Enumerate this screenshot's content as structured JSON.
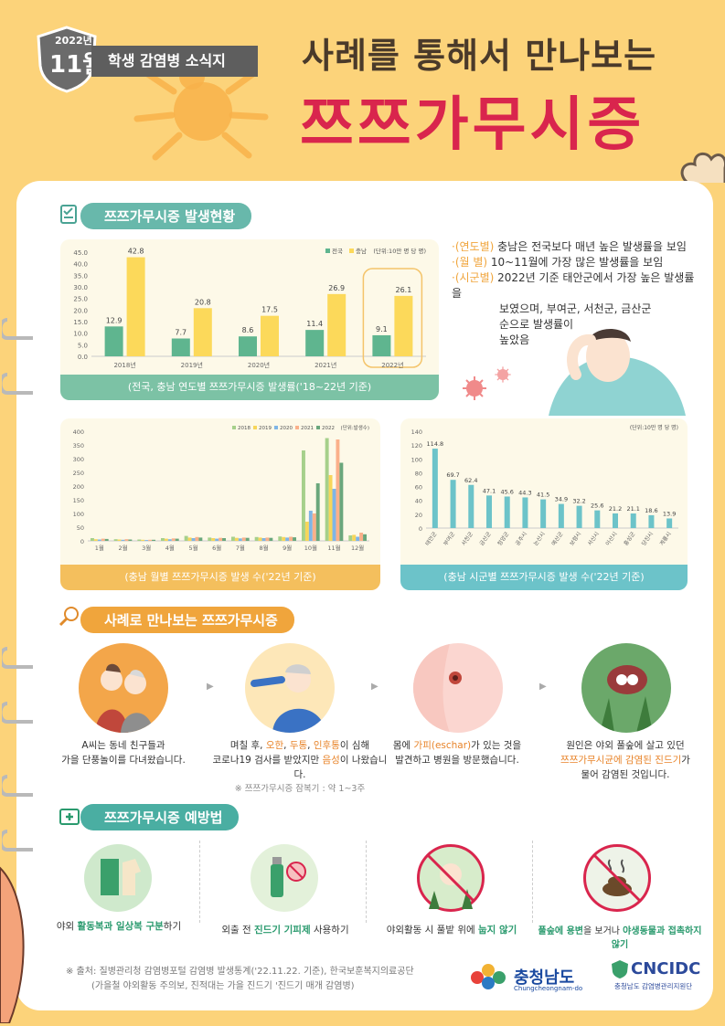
{
  "header": {
    "year": "2022년",
    "month": "11월",
    "newsletter": "학생 감염병 소식지",
    "title_line1": "사례를 통해서 만나보는",
    "title_line2": "쯔쯔가무시증"
  },
  "section1": {
    "heading": "쯔쯔가무시증 발생현황",
    "notes": [
      {
        "key": "·(연도별)",
        "text": "충남은 전국보다 매년 높은 발생률을 보임"
      },
      {
        "key": "·(월   별)",
        "text": "10~11월에 가장 많은 발생률을 보임"
      },
      {
        "key": "·(시군별)",
        "text": "2022년 기준 태안군에서 가장 높은 발생률을"
      }
    ],
    "notes_cont": [
      "보였으며, 부여군, 서천군, 금산군",
      "순으로 발생률이",
      "높았음"
    ]
  },
  "chart_yearly": {
    "type": "bar",
    "caption": "(전국, 충남 연도별 쯔쯔가무시증 발생률('18~22년 기준)",
    "unit": "(단위:10만 명 당 명)",
    "categories": [
      "2018년",
      "2019년",
      "2020년",
      "2021년",
      "2022년"
    ],
    "series": [
      {
        "name": "전국",
        "color": "#5fb58f",
        "values": [
          12.9,
          7.7,
          8.6,
          11.4,
          9.1
        ]
      },
      {
        "name": "충남",
        "color": "#fcd95a",
        "values": [
          42.8,
          20.8,
          17.5,
          26.9,
          26.1
        ]
      }
    ],
    "yticks": [
      "0.0",
      "5.0",
      "10.0",
      "15.0",
      "20.0",
      "25.0",
      "30.0",
      "35.0",
      "40.0",
      "45.0"
    ],
    "ylim": [
      0,
      45
    ]
  },
  "chart_monthly": {
    "type": "bar",
    "caption": "(충남 월별 쯔쯔가무시증 발생 수('22년 기준)",
    "unit": "(단위:발생수)",
    "categories": [
      "1월",
      "2월",
      "3월",
      "4월",
      "5월",
      "6월",
      "7월",
      "8월",
      "9월",
      "10월",
      "11월",
      "12월"
    ],
    "series": [
      {
        "name": "2018",
        "color": "#a6d08b",
        "values": [
          10,
          6,
          5,
          10,
          18,
          12,
          15,
          14,
          16,
          330,
          375,
          20
        ]
      },
      {
        "name": "2019",
        "color": "#f7d65a",
        "values": [
          6,
          5,
          4,
          8,
          12,
          10,
          11,
          12,
          14,
          70,
          240,
          22
        ]
      },
      {
        "name": "2020",
        "color": "#7fb5e6",
        "values": [
          5,
          4,
          3,
          6,
          10,
          8,
          9,
          10,
          12,
          110,
          190,
          15
        ]
      },
      {
        "name": "2021",
        "color": "#fbb08a",
        "values": [
          8,
          6,
          4,
          9,
          14,
          11,
          12,
          12,
          15,
          100,
          370,
          30
        ]
      },
      {
        "name": "2022",
        "color": "#6aa77c",
        "values": [
          7,
          5,
          4,
          8,
          12,
          10,
          11,
          11,
          13,
          210,
          285,
          24
        ]
      }
    ],
    "yticks": [
      "0",
      "50",
      "100",
      "150",
      "200",
      "250",
      "300",
      "350",
      "400"
    ],
    "ylim": [
      0,
      400
    ]
  },
  "chart_county": {
    "type": "bar",
    "caption": "(충남 시군별 쯔쯔가무시증 발생 수('22년 기준)",
    "unit": "(단위:10만 명 당 명)",
    "categories": [
      "태안군",
      "부여군",
      "서천군",
      "금산군",
      "청양군",
      "공주시",
      "논산시",
      "예산군",
      "보령시",
      "서산시",
      "아산시",
      "홍성군",
      "당진시",
      "계룡시"
    ],
    "values": [
      114.8,
      69.7,
      62.4,
      47.1,
      45.6,
      44.3,
      41.5,
      34.9,
      32.2,
      25.6,
      21.2,
      21.1,
      18.6,
      13.9
    ],
    "color": "#6cc3c9",
    "yticks": [
      "0",
      "20",
      "40",
      "60",
      "80",
      "100",
      "120",
      "140"
    ],
    "ylim": [
      0,
      140
    ]
  },
  "section2": {
    "heading": "사례로 만나보는 쯔쯔가무시증",
    "cases": [
      {
        "lines": [
          "A씨는 동네 친구들과",
          "가을 단풍놀이를 다녀왔습니다."
        ]
      },
      {
        "pre": "며칠 후, ",
        "hl1": "오한",
        "sep1": ", ",
        "hl2": "두통",
        "sep2": ", ",
        "hl3": "인후통",
        "post": "이 심해",
        "line2_pre": "코로나19 검사를 받았지만 ",
        "line2_hl": "음성",
        "line2_post": "이 나왔습니다.",
        "note": "※ 쯔쯔가무시증 잠복기 : 약 1~3주"
      },
      {
        "pre": "몸에 ",
        "hl": "가피(eschar)",
        "post": "가 있는 것을",
        "line2": "발견하고 병원을 방문했습니다."
      },
      {
        "line1": "원인은 야외 풀숲에 살고 있던",
        "hl": "쯔쯔가무시균에 감염된 진드기",
        "post": "가",
        "line3": "물어 감염된 것입니다."
      }
    ]
  },
  "section3": {
    "heading": "쯔쯔가무시증 예방법",
    "items": [
      {
        "pre": "야외 ",
        "hl": "활동복과 일상복 구분",
        "post": "하기"
      },
      {
        "pre": "외출 전 ",
        "hl": "진드기 기피제",
        "post": " 사용하기"
      },
      {
        "pre": "야외활동 시 풀밭 위에 ",
        "hl": "눕지 않기",
        "post": ""
      },
      {
        "pre": "",
        "hl": "풀숲에 용변",
        "mid": "을 보거나 ",
        "hl2": "야생동물과 접촉하지 않기",
        "post": ""
      }
    ]
  },
  "footer": {
    "source_line1": "※ 출처: 질병관리청 감염병포털 감염병 발생통계('22.11.22. 기준), 한국보훈복지의료공단",
    "source_line2": "(가을철 야외활동 주의보, 진적대는 가을 진드기 '진드기 매개 감염병)",
    "logo1": "충청남도",
    "logo1_sub": "Chungcheongnam-do",
    "logo2": "CNCIDC",
    "logo2_sub": "충청남도 감염병관리지원단"
  }
}
